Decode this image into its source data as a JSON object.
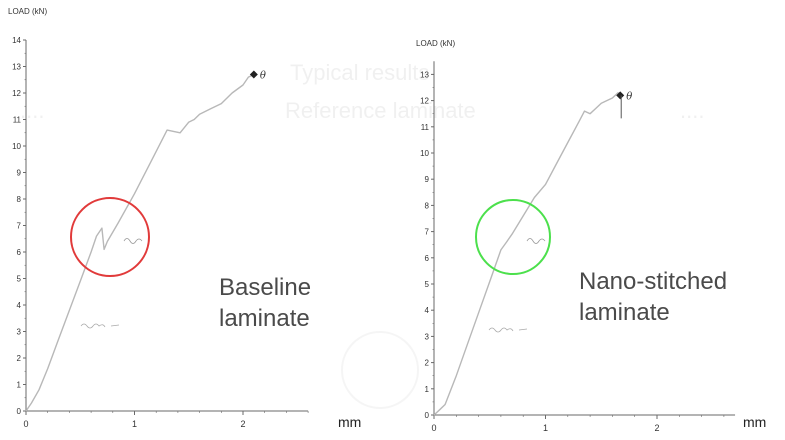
{
  "chart_data": [
    {
      "type": "line",
      "ylabel": "LOAD (kN)",
      "xlabel": "mm",
      "ylim": [
        0,
        14
      ],
      "xlim": [
        0,
        2.6
      ],
      "yticks": [
        "0",
        "1",
        "2",
        "3",
        "4",
        "5",
        "6",
        "7",
        "8",
        "9",
        "10",
        "11",
        "12",
        "13",
        "14"
      ],
      "xticks": [
        "0",
        "1",
        "2"
      ],
      "series": [
        {
          "x": [
            0,
            0.05,
            0.12,
            0.2,
            0.3,
            0.4,
            0.5,
            0.6,
            0.65,
            0.7,
            0.72,
            0.75,
            0.85,
            1.0,
            1.15,
            1.3,
            1.42,
            1.5,
            1.55,
            1.6,
            1.7,
            1.8,
            1.9,
            2.0,
            2.05,
            2.1
          ],
          "y": [
            0,
            0.3,
            0.8,
            1.6,
            2.7,
            3.8,
            4.9,
            6.0,
            6.6,
            6.9,
            6.1,
            6.4,
            7.1,
            8.2,
            9.4,
            10.6,
            10.5,
            10.9,
            11.0,
            11.2,
            11.4,
            11.6,
            12.0,
            12.3,
            12.6,
            12.7
          ]
        }
      ],
      "annotations": [
        "θ"
      ],
      "highlight_color": "#e13a3a",
      "panel_label": "Baseline laminate"
    },
    {
      "type": "line",
      "ylabel": "LOAD (kN)",
      "xlabel": "mm",
      "ylim": [
        0,
        13.5
      ],
      "xlim": [
        0,
        2.7
      ],
      "yticks": [
        "0",
        "1",
        "2",
        "3",
        "4",
        "5",
        "6",
        "7",
        "8",
        "9",
        "10",
        "11",
        "12",
        "13"
      ],
      "xticks": [
        "0",
        "1",
        "2"
      ],
      "series": [
        {
          "x": [
            0,
            0.05,
            0.1,
            0.2,
            0.3,
            0.4,
            0.5,
            0.6,
            0.65,
            0.7,
            0.8,
            0.9,
            1.0,
            1.1,
            1.2,
            1.3,
            1.35,
            1.4,
            1.45,
            1.5,
            1.55,
            1.6,
            1.65,
            1.67
          ],
          "y": [
            0,
            0.2,
            0.4,
            1.5,
            2.7,
            3.9,
            5.1,
            6.3,
            6.6,
            6.9,
            7.6,
            8.3,
            8.8,
            9.6,
            10.4,
            11.2,
            11.6,
            11.5,
            11.7,
            11.9,
            12.0,
            12.1,
            12.3,
            12.2
          ]
        }
      ],
      "annotations": [
        "θ"
      ],
      "highlight_color": "#4ce04c",
      "panel_label": "Nano-stitched laminate"
    }
  ],
  "labels": {
    "left_panel": "Baseline laminate",
    "right_panel": "Nano-stitched laminate",
    "unit": "mm"
  },
  "colors": {
    "curve": "#b8b8b8",
    "axis": "#6a6a6a",
    "red_circle": "#e13a3a",
    "green_circle": "#4ce04c",
    "text": "#4a4a4a"
  }
}
